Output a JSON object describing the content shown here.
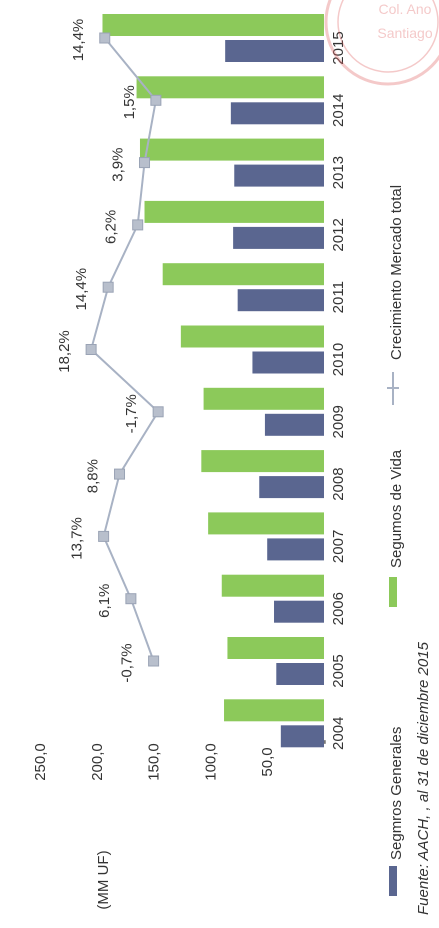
{
  "chart_data": {
    "type": "bar",
    "orientation": "rotated-90",
    "categories": [
      "2004",
      "2005",
      "2006",
      "2007",
      "2008",
      "2009",
      "2010",
      "2011",
      "2012",
      "2013",
      "2014",
      "2015"
    ],
    "series": [
      {
        "name": "Segmros Generales",
        "kind": "bar",
        "color": "#5a6690",
        "values": [
          38,
          42,
          44,
          50,
          57,
          52,
          63,
          76,
          80,
          79,
          82,
          87
        ]
      },
      {
        "name": "Segumos de Vida",
        "kind": "bar",
        "color": "#8cc95a",
        "values": [
          88,
          85,
          90,
          102,
          108,
          106,
          126,
          142,
          158,
          162,
          165,
          195
        ]
      },
      {
        "name": "Crecimiento Mercado total",
        "kind": "line",
        "color": "#a8b2c4",
        "values": [
          null,
          150,
          170,
          194,
          180,
          146,
          205,
          190,
          164,
          158,
          148,
          193
        ],
        "labels": [
          "",
          "-0,7%",
          "6,1%",
          "13,7%",
          "8,8%",
          "-1,7%",
          "18,2%",
          "14,4%",
          "6,2%",
          "3,9%",
          "1,5%",
          "14,4%"
        ]
      }
    ],
    "ylim": [
      0,
      250
    ],
    "y_ticks": [
      "-",
      "50,0",
      "100,0",
      "150,0",
      "200,0",
      "250,0"
    ],
    "ylabel": "(MM UF)",
    "legend_position": "bottom",
    "source_note": "Fuente: AACH, , al 31 de diciembre 2015"
  },
  "stamp": {
    "lines": [
      "Col. Ano",
      "Santiago"
    ],
    "color": "#e06666"
  }
}
